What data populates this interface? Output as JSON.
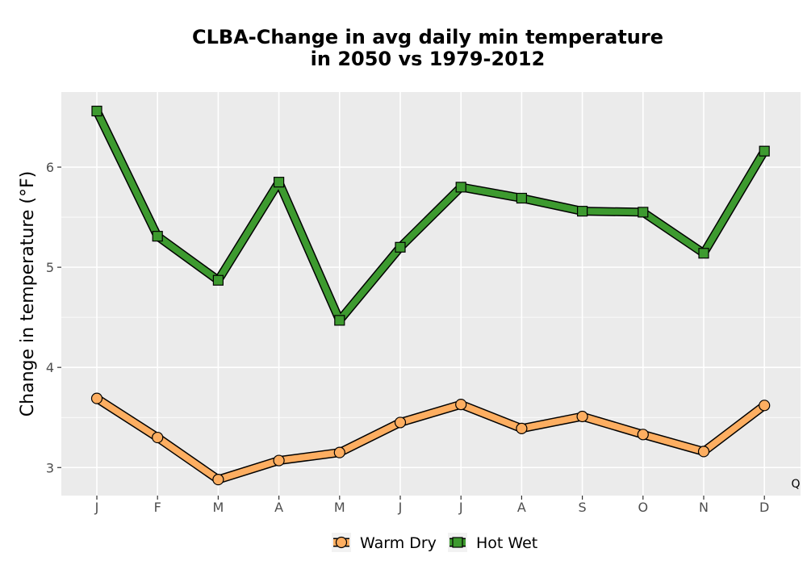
{
  "chart_data": {
    "type": "line",
    "title_lines": [
      "CLBA-Change in avg daily min temperature",
      "in 2050 vs 1979-2012"
    ],
    "xlabel": "",
    "ylabel": "Change in temperature (°F)",
    "categories": [
      "J",
      "F",
      "M",
      "A",
      "M",
      "J",
      "J",
      "A",
      "S",
      "O",
      "N",
      "D"
    ],
    "ylim": [
      2.72,
      6.75
    ],
    "yticks": [
      3,
      4,
      5,
      6
    ],
    "grid": true,
    "legend_position": "bottom",
    "corner_note": "Q",
    "series": [
      {
        "name": "Warm Dry",
        "marker": "circle",
        "color": "#FDAE61",
        "values": [
          3.69,
          3.3,
          2.88,
          3.07,
          3.15,
          3.45,
          3.63,
          3.39,
          3.51,
          3.33,
          3.16,
          3.62
        ]
      },
      {
        "name": "Hot Wet",
        "marker": "square",
        "color": "#3D9A2F",
        "values": [
          6.56,
          5.31,
          4.87,
          5.85,
          4.47,
          5.2,
          5.8,
          5.69,
          5.56,
          5.55,
          5.14,
          6.16
        ]
      }
    ]
  }
}
